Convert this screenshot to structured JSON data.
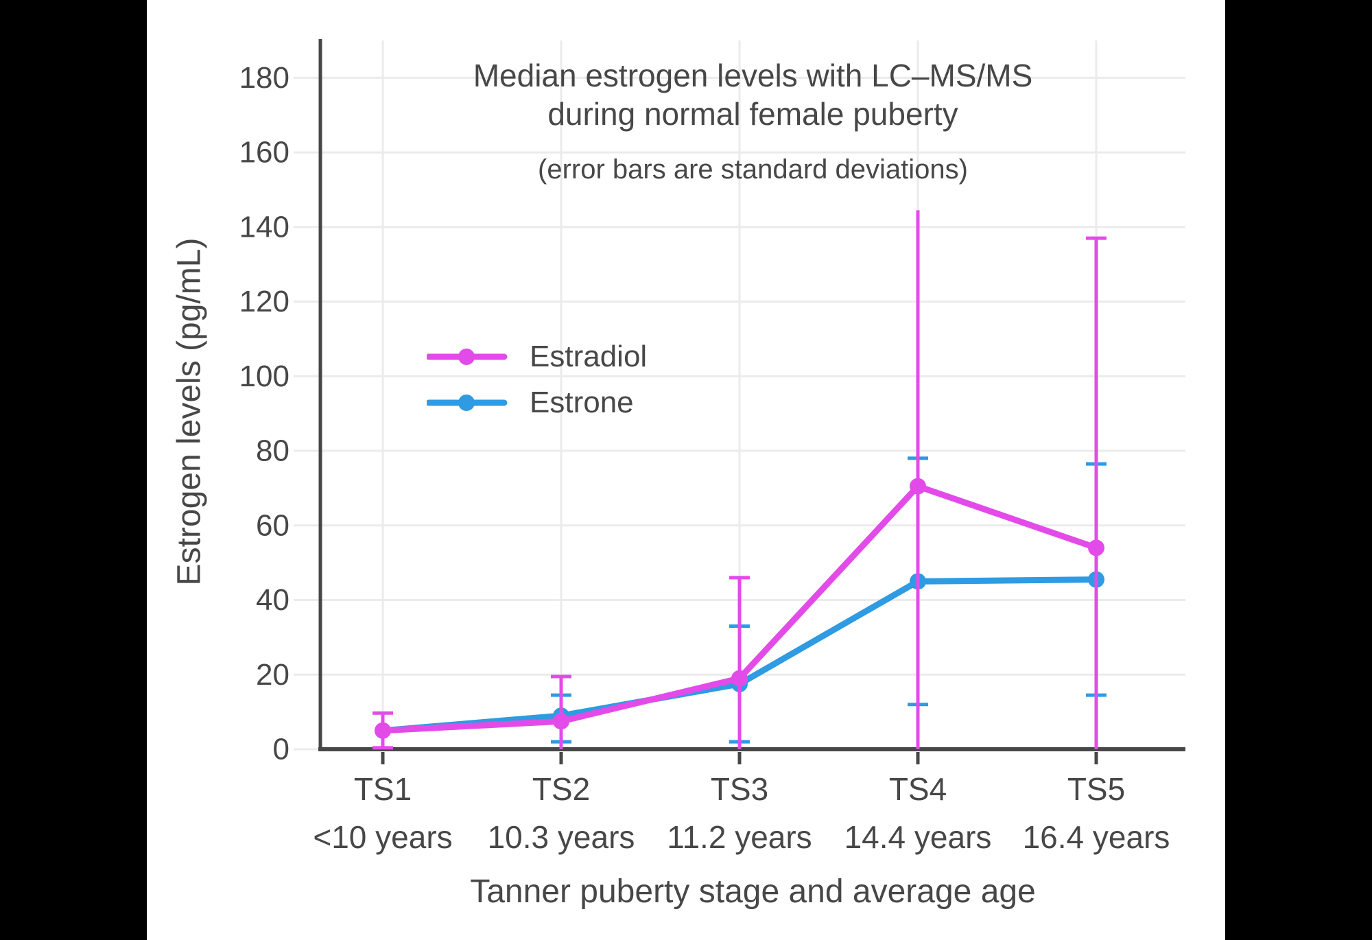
{
  "theme": {
    "letterbox": "#000000",
    "background": "#ffffff",
    "text_color": "#474747",
    "axis_color": "#474747",
    "grid_color": "#ebebeb"
  },
  "chart": {
    "title_line1": "Median estrogen levels with LC–MS/MS",
    "title_line2": "during normal female puberty",
    "subtitle": "(error bars are standard deviations)",
    "ylabel": "Estrogen levels (pg/mL)",
    "xlabel": "Tanner puberty stage and average age"
  },
  "chart_data": {
    "type": "line",
    "title": "Median estrogen levels with LC–MS/MS during normal female puberty",
    "subtitle": "(error bars are standard deviations)",
    "xlabel": "Tanner puberty stage and average age",
    "ylabel": "Estrogen levels (pg/mL)",
    "categories": [
      "TS1",
      "TS2",
      "TS3",
      "TS4",
      "TS5"
    ],
    "category_sublabels": [
      "<10 years",
      "10.3 years",
      "11.2 years",
      "14.4 years",
      "16.4 years"
    ],
    "yticks": [
      0,
      20,
      40,
      60,
      80,
      100,
      120,
      140,
      160,
      180
    ],
    "ylim": [
      0,
      190
    ],
    "grid": true,
    "legend_position": "inside-upper-left",
    "legend_order": [
      "Estradiol",
      "Estrone"
    ],
    "series": [
      {
        "name": "Estrone",
        "color": "#2E9BE2",
        "values": [
          5,
          9,
          17.5,
          45,
          45.5
        ],
        "error_top": [
          null,
          14.5,
          33,
          78,
          76.5
        ],
        "error_bottom": [
          null,
          2,
          2,
          12,
          14.5
        ]
      },
      {
        "name": "Estradiol",
        "color": "#E34BE9",
        "values": [
          5,
          7.5,
          19,
          70.5,
          54
        ],
        "error_top": [
          9.7,
          19.5,
          46,
          144.5,
          137
        ],
        "error_top_cap": [
          true,
          true,
          true,
          false,
          true
        ],
        "error_bottom": [
          0.4,
          0,
          0,
          0,
          0
        ],
        "error_bottom_cap": [
          true,
          false,
          false,
          false,
          false
        ]
      }
    ]
  }
}
